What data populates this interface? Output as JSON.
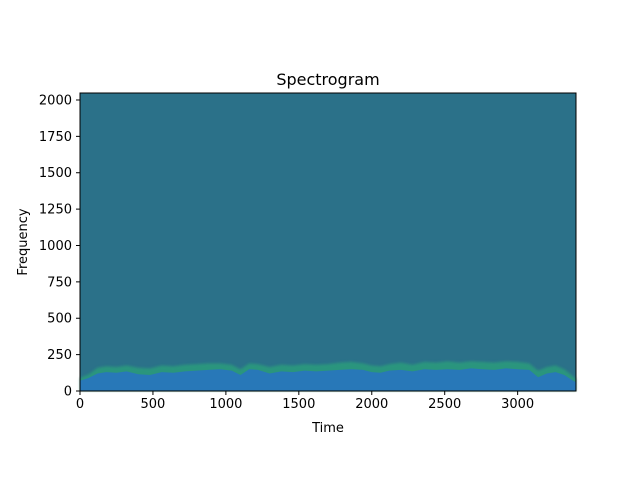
{
  "chart_data": {
    "type": "heatmap",
    "title": "Spectrogram",
    "xlabel": "Time",
    "ylabel": "Frequency",
    "xlim": [
      0,
      3400
    ],
    "ylim": [
      0,
      2048
    ],
    "x_ticks": [
      0,
      500,
      1000,
      1500,
      2000,
      2500,
      3000
    ],
    "y_ticks": [
      0,
      250,
      500,
      750,
      1000,
      1250,
      1500,
      1750,
      2000
    ],
    "grid": false,
    "colors": {
      "background_band": "#2b7189",
      "low_energy": "#2b7189",
      "high_energy_core": "#2878b8",
      "transition_green": "#2ca27a"
    },
    "energy_profile": {
      "description_x": "time",
      "time": [
        0,
        60,
        120,
        180,
        250,
        320,
        400,
        480,
        560,
        640,
        720,
        800,
        880,
        960,
        1040,
        1100,
        1160,
        1220,
        1300,
        1380,
        1460,
        1540,
        1620,
        1700,
        1780,
        1860,
        1940,
        2000,
        2060,
        2120,
        2200,
        2280,
        2360,
        2440,
        2520,
        2600,
        2680,
        2760,
        2840,
        2920,
        3000,
        3080,
        3140,
        3200,
        3260,
        3320,
        3380,
        3400
      ],
      "core_top_freq": [
        70,
        90,
        120,
        130,
        125,
        135,
        115,
        110,
        130,
        125,
        135,
        140,
        145,
        150,
        140,
        110,
        150,
        145,
        120,
        135,
        130,
        140,
        135,
        140,
        145,
        150,
        145,
        130,
        125,
        140,
        145,
        135,
        150,
        145,
        150,
        145,
        155,
        150,
        145,
        155,
        150,
        145,
        95,
        120,
        130,
        110,
        70,
        60
      ],
      "green_top_freq": [
        90,
        115,
        160,
        170,
        165,
        175,
        160,
        155,
        175,
        170,
        180,
        185,
        190,
        190,
        180,
        150,
        190,
        185,
        165,
        180,
        175,
        185,
        180,
        185,
        195,
        200,
        190,
        175,
        170,
        185,
        195,
        180,
        200,
        195,
        205,
        195,
        205,
        200,
        195,
        205,
        200,
        190,
        140,
        165,
        175,
        150,
        100,
        85
      ]
    }
  }
}
